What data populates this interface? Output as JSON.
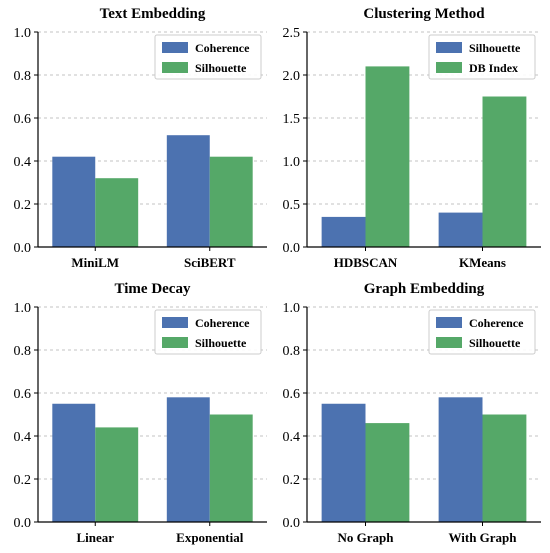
{
  "colors": {
    "series_a": "#4c72b0",
    "series_b": "#55a868"
  },
  "chart_data": [
    {
      "type": "bar",
      "title": "Text Embedding",
      "categories": [
        "MiniLM",
        "SciBERT"
      ],
      "series": [
        {
          "name": "Coherence",
          "values": [
            0.42,
            0.52
          ]
        },
        {
          "name": "Silhouette",
          "values": [
            0.32,
            0.42
          ]
        }
      ],
      "ylim": [
        0,
        1.0
      ],
      "yticks": [
        "0.0",
        "0.2",
        "0.4",
        "0.6",
        "0.8",
        "1.0"
      ],
      "grid": true,
      "legend": "top-right"
    },
    {
      "type": "bar",
      "title": "Clustering Method",
      "categories": [
        "HDBSCAN",
        "KMeans"
      ],
      "series": [
        {
          "name": "Silhouette",
          "values": [
            0.35,
            0.4
          ]
        },
        {
          "name": "DB Index",
          "values": [
            2.1,
            1.75
          ]
        }
      ],
      "ylim": [
        0,
        2.5
      ],
      "yticks": [
        "0.0",
        "0.5",
        "1.0",
        "1.5",
        "2.0",
        "2.5"
      ],
      "grid": true,
      "legend": "top-right"
    },
    {
      "type": "bar",
      "title": "Time Decay",
      "categories": [
        "Linear",
        "Exponential"
      ],
      "series": [
        {
          "name": "Coherence",
          "values": [
            0.55,
            0.58
          ]
        },
        {
          "name": "Silhouette",
          "values": [
            0.44,
            0.5
          ]
        }
      ],
      "ylim": [
        0,
        1.0
      ],
      "yticks": [
        "0.0",
        "0.2",
        "0.4",
        "0.6",
        "0.8",
        "1.0"
      ],
      "grid": true,
      "legend": "top-right"
    },
    {
      "type": "bar",
      "title": "Graph Embedding",
      "categories": [
        "No Graph",
        "With Graph"
      ],
      "series": [
        {
          "name": "Coherence",
          "values": [
            0.55,
            0.58
          ]
        },
        {
          "name": "Silhouette",
          "values": [
            0.46,
            0.5
          ]
        }
      ],
      "ylim": [
        0,
        1.0
      ],
      "yticks": [
        "0.0",
        "0.2",
        "0.4",
        "0.6",
        "0.8",
        "1.0"
      ],
      "grid": true,
      "legend": "top-right"
    }
  ]
}
